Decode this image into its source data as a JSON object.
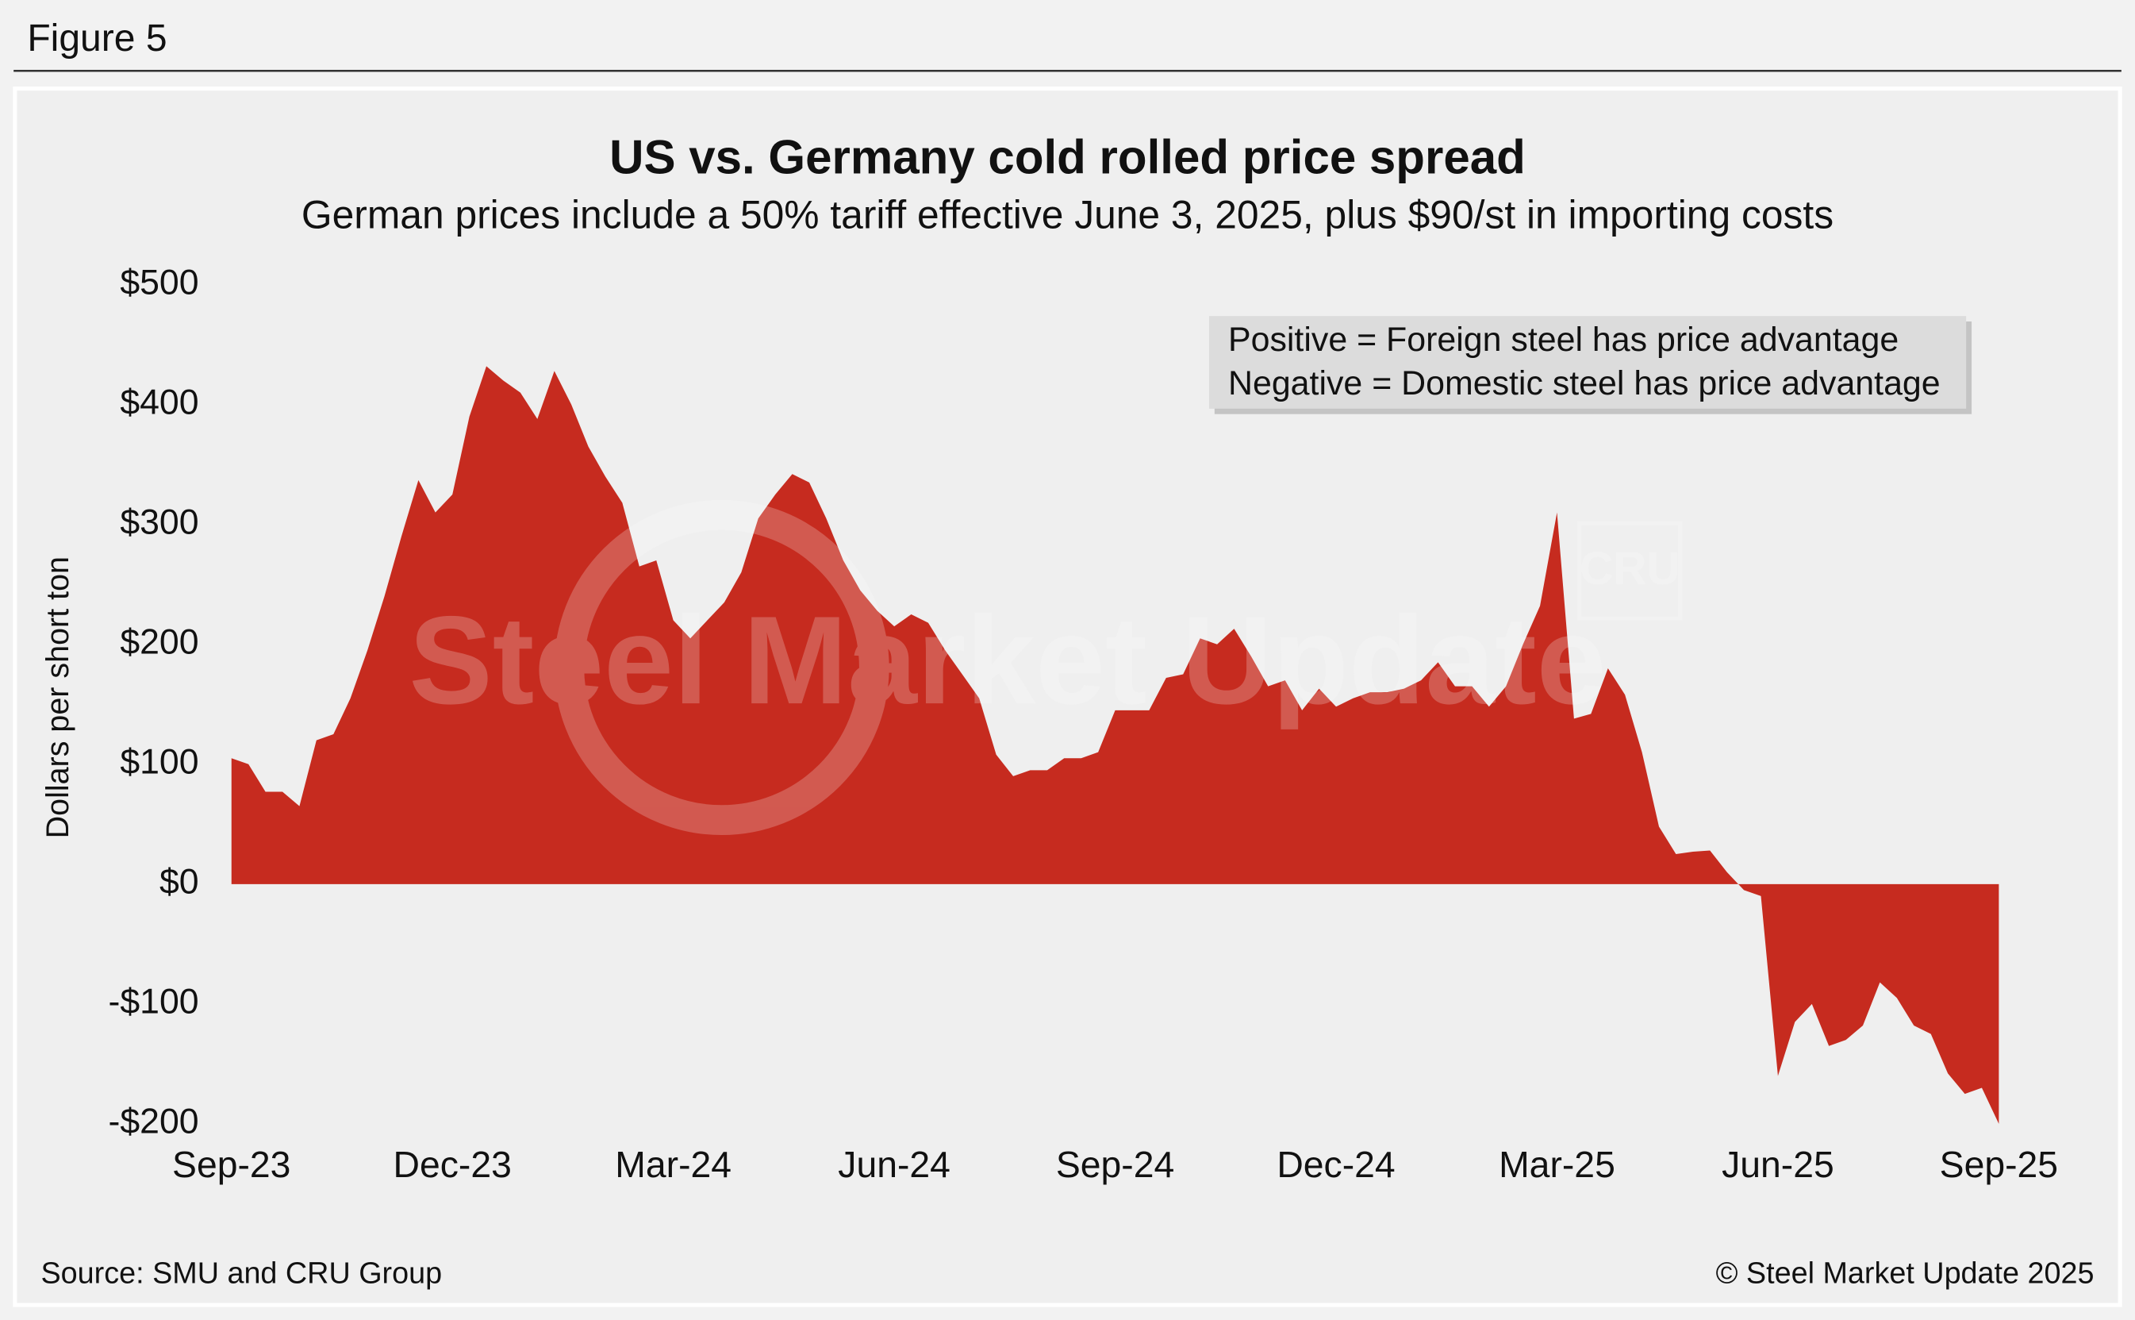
{
  "figure_label": "Figure 5",
  "chart_data": {
    "type": "area",
    "title": "US vs. Germany cold rolled price spread",
    "subtitle": "German prices include a 50% tariff effective June 3, 2025, plus $90/st in importing costs",
    "y_label": "Dollars per short ton",
    "annotation": [
      "Positive = Foreign steel has price advantage",
      "Negative = Domestic steel has price advantage"
    ],
    "watermark": "Steel Market Update",
    "watermark_logo": "CRU",
    "source": "Source: SMU and CRU Group",
    "copyright": "© Steel Market Update 2025",
    "color": "#c62b1f",
    "categories": [
      "Sep-23",
      null,
      null,
      null,
      null,
      null,
      null,
      null,
      null,
      null,
      null,
      null,
      null,
      "Dec-23",
      null,
      null,
      null,
      null,
      null,
      null,
      null,
      null,
      null,
      null,
      null,
      null,
      "Mar-24",
      null,
      null,
      null,
      null,
      null,
      null,
      null,
      null,
      null,
      null,
      null,
      null,
      "Jun-24",
      null,
      null,
      null,
      null,
      null,
      null,
      null,
      null,
      null,
      null,
      null,
      null,
      "Sep-24",
      null,
      null,
      null,
      null,
      null,
      null,
      null,
      null,
      null,
      null,
      null,
      null,
      "Dec-24",
      null,
      null,
      null,
      null,
      null,
      null,
      null,
      null,
      null,
      null,
      null,
      null,
      "Mar-25",
      null,
      null,
      null,
      null,
      null,
      null,
      null,
      null,
      null,
      null,
      null,
      null,
      "Jun-25",
      null,
      null,
      null,
      null,
      null,
      null,
      null,
      null,
      null,
      null,
      null,
      null,
      "Sep-25"
    ],
    "values": [
      105,
      100,
      77,
      77,
      65,
      120,
      125,
      155,
      195,
      240,
      290,
      337,
      310,
      325,
      390,
      432,
      420,
      410,
      388,
      428,
      400,
      365,
      340,
      318,
      265,
      270,
      220,
      205,
      220,
      235,
      260,
      305,
      325,
      342,
      335,
      305,
      270,
      245,
      228,
      215,
      225,
      218,
      195,
      175,
      155,
      108,
      90,
      95,
      95,
      105,
      105,
      110,
      145,
      145,
      145,
      172,
      175,
      205,
      200,
      213,
      190,
      165,
      170,
      145,
      163,
      148,
      155,
      160,
      160,
      163,
      170,
      185,
      165,
      165,
      148,
      165,
      200,
      232,
      310,
      138,
      142,
      180,
      158,
      110,
      48,
      25,
      27,
      28,
      10,
      -5,
      -10,
      -160,
      -115,
      -100,
      -135,
      -130,
      -118,
      -82,
      -95,
      -118,
      -125,
      -158,
      -175,
      -170,
      -200
    ],
    "ylim": [
      -200,
      500
    ],
    "yticks": [
      {
        "value": -200,
        "label": "-$200"
      },
      {
        "value": -100,
        "label": "-$100"
      },
      {
        "value": 0,
        "label": "$0"
      },
      {
        "value": 100,
        "label": "$100"
      },
      {
        "value": 200,
        "label": "$200"
      },
      {
        "value": 300,
        "label": "$300"
      },
      {
        "value": 400,
        "label": "$400"
      },
      {
        "value": 500,
        "label": "$500"
      }
    ],
    "grid": false
  }
}
